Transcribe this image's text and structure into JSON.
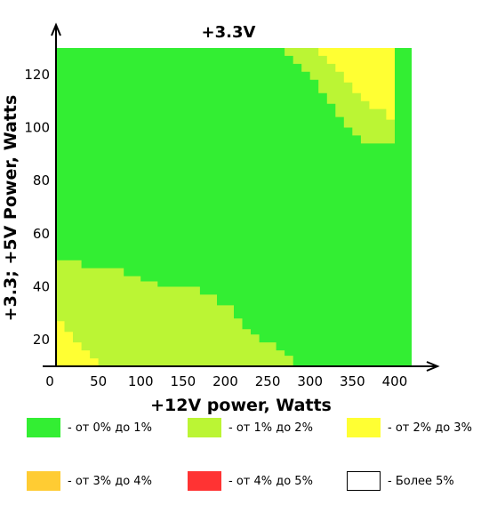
{
  "chart_data": {
    "type": "heatmap",
    "title": "+3.3V",
    "xlabel": "+12V power, Watts",
    "ylabel": "+3.3; +5V Power, Watts",
    "xlim": [
      0,
      420
    ],
    "ylim": [
      10,
      130
    ],
    "xticks": [
      0,
      50,
      100,
      150,
      200,
      250,
      300,
      350,
      400
    ],
    "yticks": [
      20,
      40,
      60,
      80,
      100,
      120
    ],
    "grid": false,
    "legend_position": "bottom",
    "legend": [
      {
        "label": "- от 0% до 1%",
        "color": "#33ee33"
      },
      {
        "label": "- от 1% до 2%",
        "color": "#bbf534"
      },
      {
        "label": "- от 2% до 3%",
        "color": "#ffff33"
      },
      {
        "label": "- от 3% до 4%",
        "color": "#ffcc33"
      },
      {
        "label": "- от 4% до 5%",
        "color": "#ff3333"
      },
      {
        "label": "- Более 5%",
        "color": "#ffffff"
      }
    ],
    "background_category": "- от 0% до 1%",
    "regions": [
      {
        "category": "- от 1% до 2%",
        "polygon": [
          [
            0,
            10
          ],
          [
            0,
            50
          ],
          [
            30,
            50
          ],
          [
            30,
            47
          ],
          [
            80,
            47
          ],
          [
            80,
            44
          ],
          [
            100,
            44
          ],
          [
            100,
            42
          ],
          [
            120,
            42
          ],
          [
            120,
            40
          ],
          [
            170,
            40
          ],
          [
            170,
            37
          ],
          [
            190,
            37
          ],
          [
            190,
            33
          ],
          [
            210,
            33
          ],
          [
            210,
            28
          ],
          [
            220,
            28
          ],
          [
            220,
            24
          ],
          [
            230,
            24
          ],
          [
            230,
            22
          ],
          [
            240,
            22
          ],
          [
            240,
            19
          ],
          [
            260,
            19
          ],
          [
            260,
            16
          ],
          [
            270,
            16
          ],
          [
            270,
            14
          ],
          [
            280,
            14
          ],
          [
            280,
            10
          ]
        ]
      },
      {
        "category": "- от 2% до 3%",
        "polygon": [
          [
            0,
            10
          ],
          [
            0,
            27
          ],
          [
            10,
            27
          ],
          [
            10,
            23
          ],
          [
            20,
            23
          ],
          [
            20,
            19
          ],
          [
            30,
            19
          ],
          [
            30,
            16
          ],
          [
            40,
            16
          ],
          [
            40,
            13
          ],
          [
            50,
            13
          ],
          [
            50,
            10
          ]
        ]
      },
      {
        "category": "- от 1% до 2%",
        "polygon": [
          [
            270,
            130
          ],
          [
            270,
            127
          ],
          [
            280,
            127
          ],
          [
            280,
            124
          ],
          [
            290,
            124
          ],
          [
            290,
            121
          ],
          [
            300,
            121
          ],
          [
            300,
            118
          ],
          [
            310,
            118
          ],
          [
            310,
            113
          ],
          [
            320,
            113
          ],
          [
            320,
            109
          ],
          [
            330,
            109
          ],
          [
            330,
            104
          ],
          [
            340,
            104
          ],
          [
            340,
            100
          ],
          [
            350,
            100
          ],
          [
            350,
            97
          ],
          [
            360,
            97
          ],
          [
            360,
            94
          ],
          [
            400,
            94
          ],
          [
            400,
            130
          ]
        ]
      },
      {
        "category": "- от 2% до 3%",
        "polygon": [
          [
            310,
            130
          ],
          [
            310,
            127
          ],
          [
            320,
            127
          ],
          [
            320,
            124
          ],
          [
            330,
            124
          ],
          [
            330,
            121
          ],
          [
            340,
            121
          ],
          [
            340,
            117
          ],
          [
            350,
            117
          ],
          [
            350,
            113
          ],
          [
            360,
            113
          ],
          [
            360,
            110
          ],
          [
            370,
            110
          ],
          [
            370,
            107
          ],
          [
            390,
            107
          ],
          [
            390,
            103
          ],
          [
            400,
            103
          ],
          [
            400,
            130
          ]
        ]
      }
    ]
  }
}
